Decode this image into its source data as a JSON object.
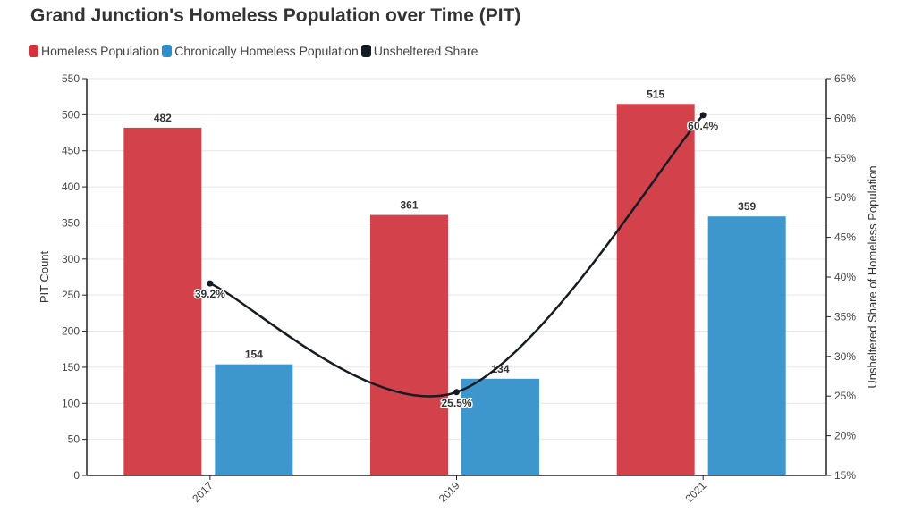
{
  "chart_data": {
    "type": "bar",
    "title": "Grand Junction's Homeless Population over Time (PIT)",
    "categories": [
      "2017",
      "2019",
      "2021"
    ],
    "series": [
      {
        "name": "Homeless Population",
        "type": "bar",
        "axis": "left",
        "color": "#d0343c",
        "values": [
          482,
          361,
          515
        ]
      },
      {
        "name": "Chronically Homeless Population",
        "type": "bar",
        "axis": "left",
        "color": "#2e8fc8",
        "values": [
          154,
          134,
          359
        ]
      },
      {
        "name": "Unsheltered Share",
        "type": "line",
        "axis": "right",
        "color": "#161c24",
        "values": [
          39.2,
          25.5,
          60.4
        ],
        "labels": [
          "39.2%",
          "25.5%",
          "60.4%"
        ]
      }
    ],
    "ylabel": "PIT Count",
    "ylim": [
      0,
      550
    ],
    "yticks": [
      "0",
      "50",
      "100",
      "150",
      "200",
      "250",
      "300",
      "350",
      "400",
      "450",
      "500",
      "550"
    ],
    "y2label": "Unsheltered Share of Homeless Population",
    "y2lim": [
      15,
      65
    ],
    "y2ticks": [
      "15%",
      "20%",
      "25%",
      "30%",
      "35%",
      "40%",
      "45%",
      "50%",
      "55%",
      "60%",
      "65%"
    ],
    "grid": true,
    "legend_position": "top-left"
  }
}
